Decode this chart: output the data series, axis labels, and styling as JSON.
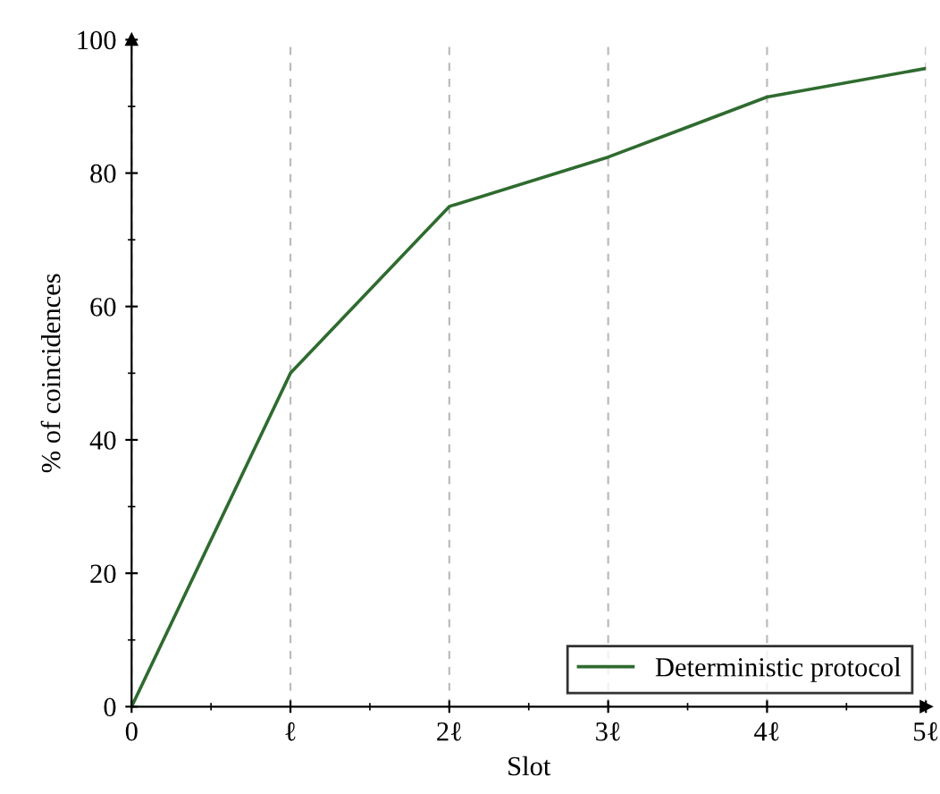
{
  "chart_data": {
    "type": "line",
    "xlabel": "Slot",
    "ylabel": "% of coincidences",
    "x": [
      0,
      1,
      2,
      3,
      4,
      5
    ],
    "series": [
      {
        "name": "Deterministic protocol",
        "color": "#2f6b2f",
        "values": [
          0,
          50,
          75,
          82.4,
          91.4,
          95.7
        ]
      }
    ],
    "xlim": [
      0,
      5
    ],
    "ylim": [
      0,
      100
    ],
    "xticks": [
      0,
      {
        "value": 1,
        "label": "ℓ"
      },
      {
        "value": 2,
        "label": "2ℓ"
      },
      {
        "value": 3,
        "label": "3ℓ"
      },
      {
        "value": 4,
        "label": "4ℓ"
      },
      {
        "value": 5,
        "label": "5ℓ"
      }
    ],
    "yticks": [
      0,
      20,
      40,
      60,
      80,
      100
    ],
    "grid": "x",
    "legend": "bottom right",
    "marker": "none",
    "line_style": "solid"
  }
}
